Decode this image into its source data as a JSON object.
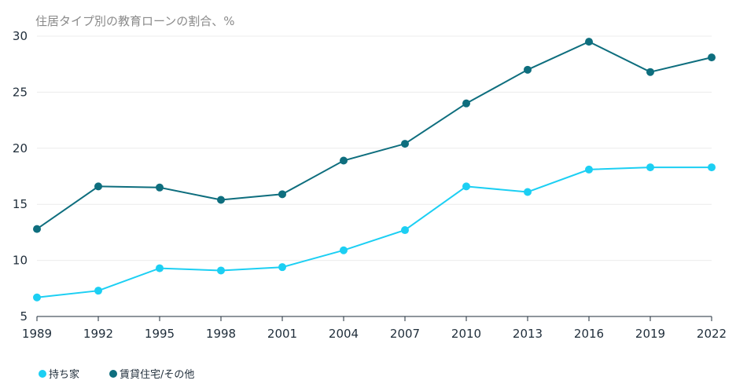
{
  "chart_data": {
    "type": "line",
    "title": "住居タイプ別の教育ローンの割合、%",
    "x": [
      "1989",
      "1992",
      "1995",
      "1998",
      "2001",
      "2004",
      "2007",
      "2010",
      "2013",
      "2016",
      "2019",
      "2022"
    ],
    "series": [
      {
        "name": "持ち家",
        "color": "#1ccff3",
        "values": [
          6.7,
          7.3,
          9.3,
          9.1,
          9.4,
          10.9,
          12.7,
          16.6,
          16.1,
          18.1,
          18.3,
          18.3
        ]
      },
      {
        "name": "賃貸住宅/その他",
        "color": "#0e6e7e",
        "values": [
          12.8,
          16.6,
          16.5,
          15.4,
          15.9,
          18.9,
          20.4,
          24.0,
          27.0,
          29.5,
          26.8,
          28.1
        ]
      }
    ],
    "ylim": [
      5,
      30
    ],
    "yticks": [
      5,
      10,
      15,
      20,
      25,
      30
    ],
    "grid": true,
    "legend_position": "bottom-left"
  }
}
